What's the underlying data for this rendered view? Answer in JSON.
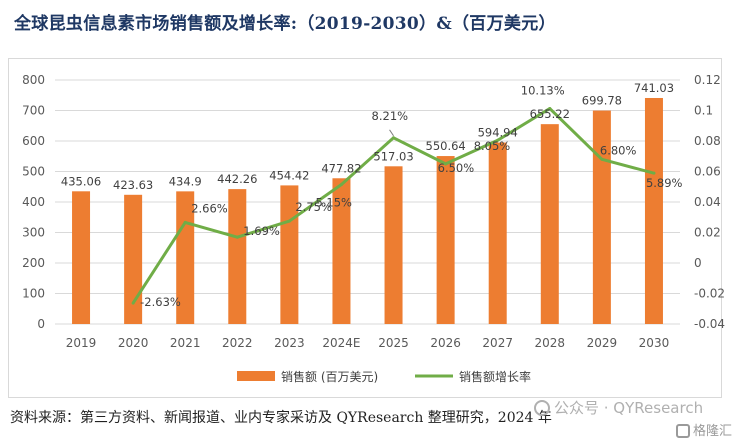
{
  "title": "全球昆虫信息素市场销售额及增长率:（2019-2030）&（百万美元）",
  "source_note": "资料来源：第三方资料、新闻报道、业内专家采访及 QYResearch 整理研究，2024 年",
  "watermark": "公众号 · QYResearch",
  "logo_text": "格隆汇",
  "chart_data": {
    "type": "bar",
    "categories": [
      "2019",
      "2020",
      "2021",
      "2022",
      "2023",
      "2024E",
      "2025",
      "2026",
      "2027",
      "2028",
      "2029",
      "2030"
    ],
    "series": [
      {
        "name": "销售额 (百万美元)",
        "type": "bar",
        "axis": "left",
        "color": "#ed7d31",
        "values": [
          435.06,
          423.63,
          434.9,
          442.26,
          454.42,
          477.82,
          517.03,
          550.64,
          594.94,
          655.22,
          699.78,
          741.03
        ],
        "labels": [
          "435.06",
          "423.63",
          "434.9",
          "442.26",
          "454.42",
          "477.82",
          "517.03",
          "550.64",
          "594.94",
          "655.22",
          "699.78",
          "741.03"
        ]
      },
      {
        "name": "销售额增长率",
        "type": "line",
        "axis": "right",
        "color": "#70ad47",
        "values": [
          null,
          -0.0263,
          0.0266,
          0.0169,
          0.0275,
          0.0515,
          0.0821,
          0.065,
          0.0805,
          0.1013,
          0.068,
          0.0589
        ],
        "labels": [
          "",
          "-2.63%",
          "2.66%",
          "1.69%",
          "2.75%",
          "5.15%",
          "8.21%",
          "6.50%",
          "8.05%",
          "10.13%",
          "6.80%",
          "5.89%"
        ]
      }
    ],
    "y_left": {
      "min": 0,
      "max": 800,
      "ticks": [
        "0",
        "100",
        "200",
        "300",
        "400",
        "500",
        "600",
        "700",
        "800"
      ]
    },
    "y_right": {
      "min": -0.04,
      "max": 0.12,
      "ticks": [
        "-0.04",
        "-0.02",
        "0",
        "0.02",
        "0.04",
        "0.06",
        "0.08",
        "0.1",
        "0.12"
      ]
    },
    "grid": true,
    "legend_position": "bottom"
  }
}
